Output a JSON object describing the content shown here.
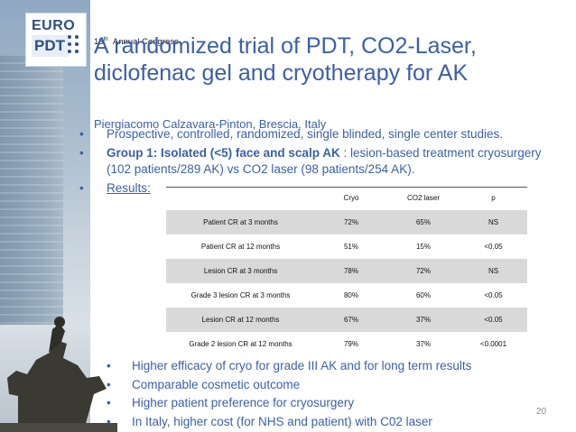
{
  "logo": {
    "line1": "EURO",
    "line2": "PDT"
  },
  "congress": {
    "number": "13",
    "suffix": "th",
    "text": "Annual Congress"
  },
  "title": "A randomized trial of PDT, CO2-Laser, diclofenac gel and cryotherapy for AK",
  "author": "Piergiacomo Calzavara-Pinton, Brescia, Italy",
  "bullets": [
    {
      "bullet": "•",
      "text": "Prospective, controlled, randomized, single blinded, single center studies."
    },
    {
      "bullet": "•",
      "bold": "Group 1: Isolated (<5) face and scalp AK",
      "text": " : lesion-based treatment cryosurgery (102 patients/289 AK) vs CO2 laser (98 patients/254 AK)."
    },
    {
      "bullet": "•",
      "text": "Results:"
    }
  ],
  "table": {
    "headers": [
      "",
      "Cryo",
      "CO2 laser",
      "p"
    ],
    "rows": [
      [
        "Patient CR at 3 months",
        "72%",
        "65%",
        "NS"
      ],
      [
        "Patient CR at 12 months",
        "51%",
        "15%",
        "<0.05"
      ],
      [
        "Lesion CR at 3 months",
        "78%",
        "72%",
        "NS"
      ],
      [
        "Grade 3 lesion CR at 3 months",
        "80%",
        "60%",
        "<0.05"
      ],
      [
        "Lesion CR at 12 months",
        "67%",
        "37%",
        "<0.05"
      ],
      [
        "Grade  2 lesion CR at 12 months",
        "79%",
        "37%",
        "<0.0001"
      ]
    ]
  },
  "conclusions": [
    {
      "bullet": "•",
      "text": "Higher efficacy of cryo for grade III AK and for long term results"
    },
    {
      "bullet": "•",
      "text": "Comparable cosmetic outcome"
    },
    {
      "bullet": "•",
      "text": "Higher patient preference for cryosurgery"
    },
    {
      "bullet": "•",
      "text": "In Italy, higher cost (for NHS and patient) with C02 laser"
    }
  ],
  "page_number": "20",
  "colors": {
    "text_blue": "#3b5fa8",
    "table_shade": "#d9d9d9"
  }
}
